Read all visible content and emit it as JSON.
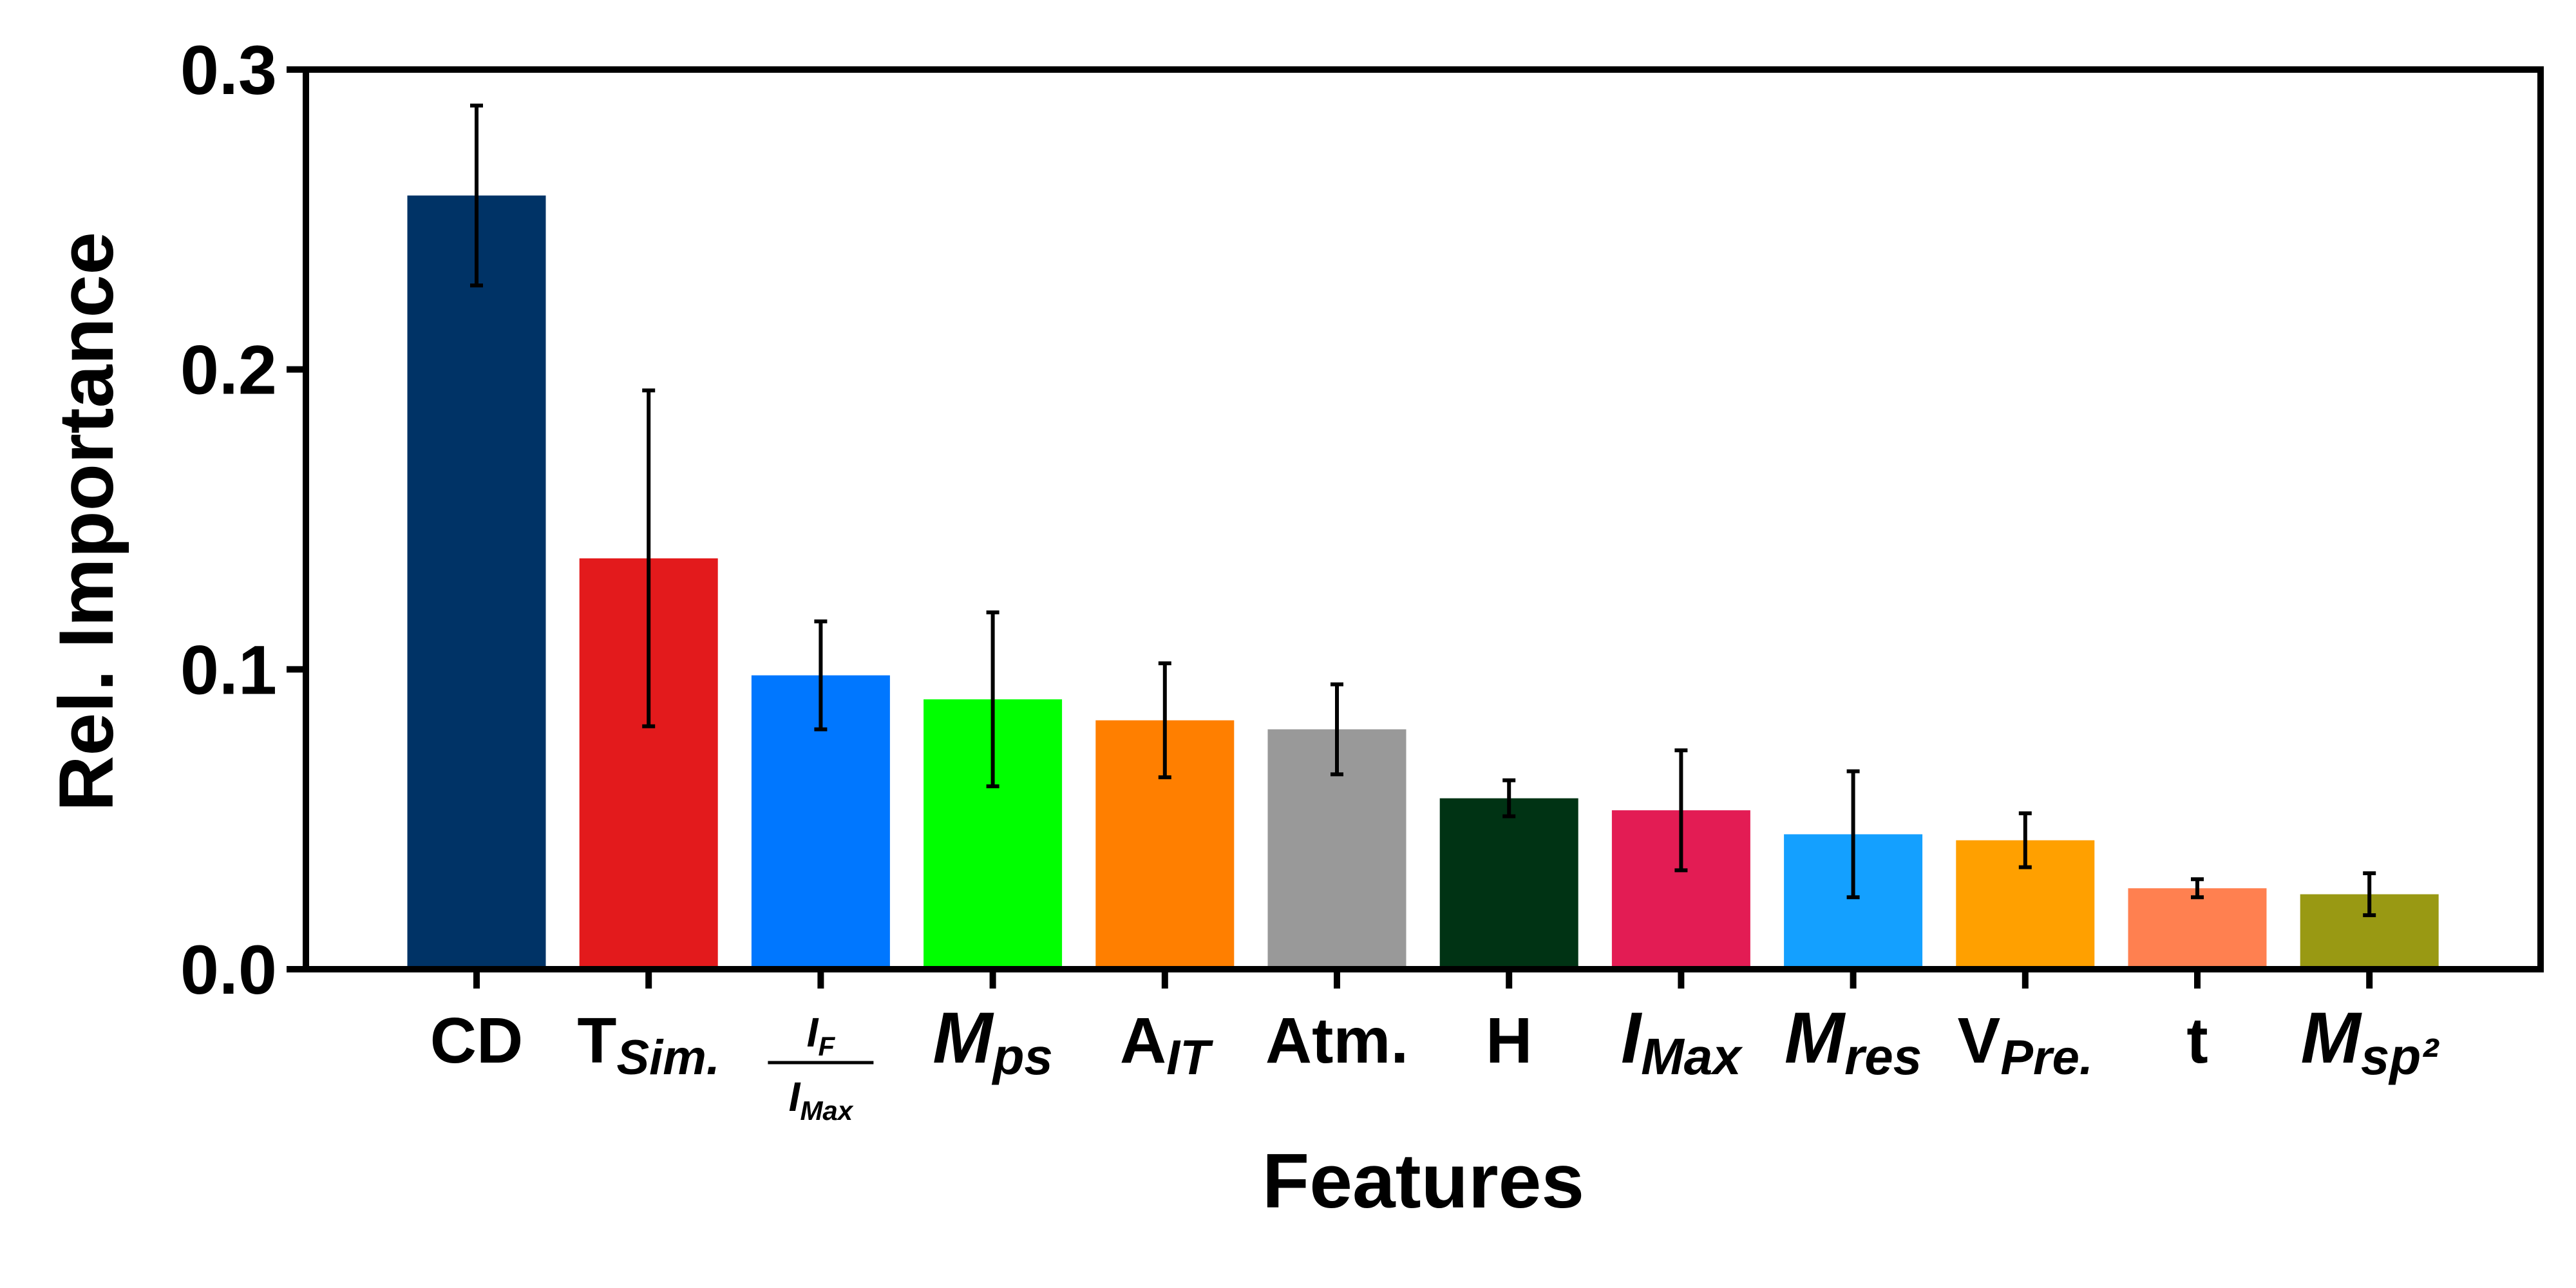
{
  "chart_data": {
    "type": "bar",
    "xlabel": "Features",
    "ylabel": "Rel. Importance",
    "ylim": [
      0,
      0.3
    ],
    "yticks": [
      "0.0",
      "0.1",
      "0.2",
      "0.3"
    ],
    "grid": false,
    "legend": "none",
    "categories": [
      {
        "base": "CD"
      },
      {
        "base": "T",
        "sub": "Sim."
      },
      {
        "frac_num_base": "I",
        "frac_num_sub": "F",
        "frac_den_base": "I",
        "frac_den_sub": "Max"
      },
      {
        "base": "M",
        "sub": "ps",
        "italic": true
      },
      {
        "base": "A",
        "sub": "IT"
      },
      {
        "base": "Atm."
      },
      {
        "base": "H"
      },
      {
        "base": "I",
        "sub": "Max",
        "italic": true
      },
      {
        "base": "M",
        "sub": "res",
        "italic": true
      },
      {
        "base": "V",
        "sub": "Pre."
      },
      {
        "base": "t"
      },
      {
        "base": "M",
        "sub": "sp²",
        "italic": true
      }
    ],
    "values": [
      0.258,
      0.137,
      0.098,
      0.09,
      0.083,
      0.08,
      0.057,
      0.053,
      0.045,
      0.043,
      0.027,
      0.025
    ],
    "errors": [
      0.03,
      0.056,
      0.018,
      0.029,
      0.019,
      0.015,
      0.006,
      0.02,
      0.021,
      0.009,
      0.003,
      0.007
    ],
    "colors": [
      "#003366",
      "#e31a1c",
      "#0077ff",
      "#00ff00",
      "#ff7f00",
      "#999999",
      "#003314",
      "#e31c54",
      "#14a0ff",
      "#ffa000",
      "#ff8050",
      "#999913"
    ]
  }
}
